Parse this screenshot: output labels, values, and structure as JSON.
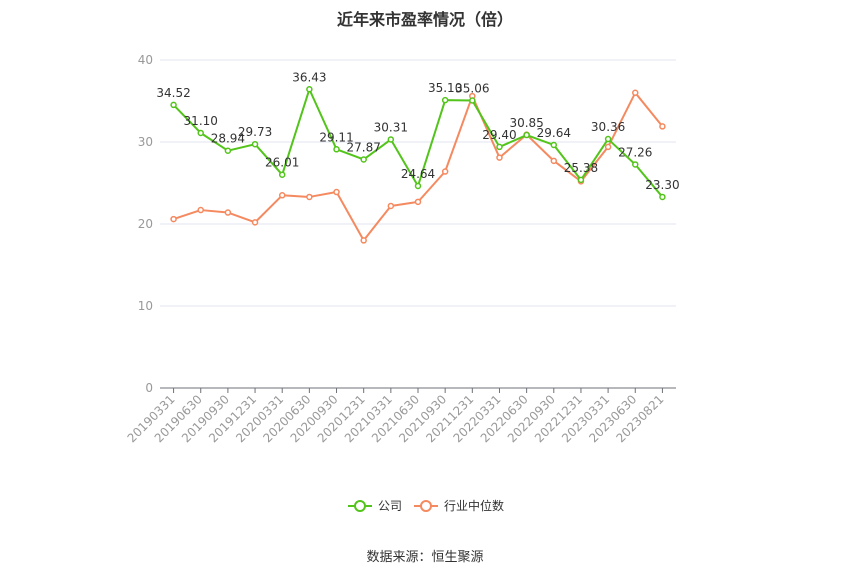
{
  "chart_data": {
    "type": "line",
    "title": "近年来市盈率情况（倍）",
    "source": "数据来源：恒生聚源",
    "categories": [
      "20190331",
      "20190630",
      "20190930",
      "20191231",
      "20200331",
      "20200630",
      "20200930",
      "20201231",
      "20210331",
      "20210630",
      "20210930",
      "20211231",
      "20220331",
      "20220630",
      "20220930",
      "20221231",
      "20230331",
      "20230630",
      "20230821"
    ],
    "ylim": [
      0,
      40
    ],
    "yticks": [
      "0",
      "10",
      "20",
      "30",
      "40"
    ],
    "grid": true,
    "legend_position": "bottom-center",
    "series": [
      {
        "name": "公司",
        "color": "#52c41a",
        "values": [
          34.52,
          31.1,
          28.94,
          29.73,
          26.01,
          36.43,
          29.11,
          27.87,
          30.31,
          24.64,
          35.1,
          35.06,
          29.4,
          30.85,
          29.64,
          25.38,
          30.36,
          27.26,
          23.3
        ],
        "labels": [
          "34.52",
          "31.10",
          "28.94",
          "29.73",
          "26.01",
          "36.43",
          "29.11",
          "27.87",
          "30.31",
          "24.64",
          "35.10",
          "35.06",
          "29.40",
          "30.85",
          "29.64",
          "25.38",
          "30.36",
          "27.26",
          "23.30"
        ]
      },
      {
        "name": "行业中位数",
        "color": "#f5895f",
        "values": [
          20.6,
          21.7,
          21.4,
          20.2,
          23.5,
          23.3,
          23.9,
          18.0,
          22.2,
          22.7,
          26.4,
          35.6,
          28.1,
          30.9,
          27.7,
          25.2,
          29.4,
          36.0,
          31.9
        ]
      }
    ]
  }
}
